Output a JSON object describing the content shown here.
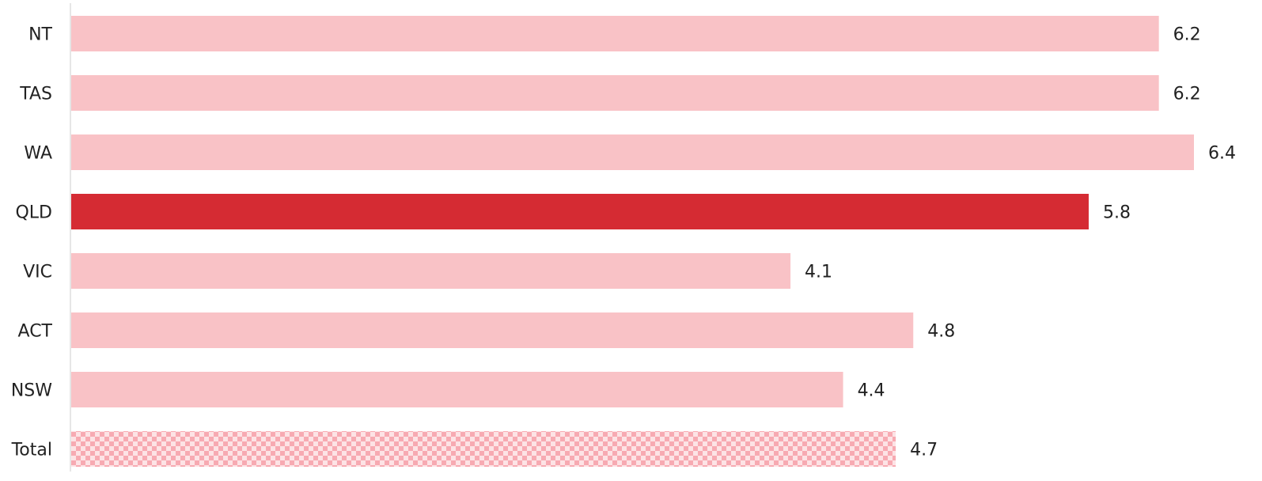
{
  "chart_data": {
    "type": "bar",
    "orientation": "horizontal",
    "title": "",
    "xlabel": "",
    "ylabel": "",
    "categories": [
      "NT",
      "TAS",
      "WA",
      "QLD",
      "VIC",
      "ACT",
      "NSW",
      "Total"
    ],
    "values": [
      6.2,
      6.2,
      6.4,
      5.8,
      4.1,
      4.8,
      4.4,
      4.7
    ],
    "value_labels": [
      "6.2",
      "6.2",
      "6.4",
      "5.8",
      "4.1",
      "4.8",
      "4.4",
      "4.7"
    ],
    "highlighted_category": "QLD",
    "xlim": [
      0,
      6.4
    ],
    "grid": false,
    "legend": "none",
    "colors": {
      "default_bar": "#f9c2c6",
      "highlight_bar": "#d52b33",
      "total_pattern_light": "#fde3e5",
      "total_pattern_dark": "#f7aab2",
      "axis_line": "#cccccc",
      "text": "#222222"
    }
  }
}
